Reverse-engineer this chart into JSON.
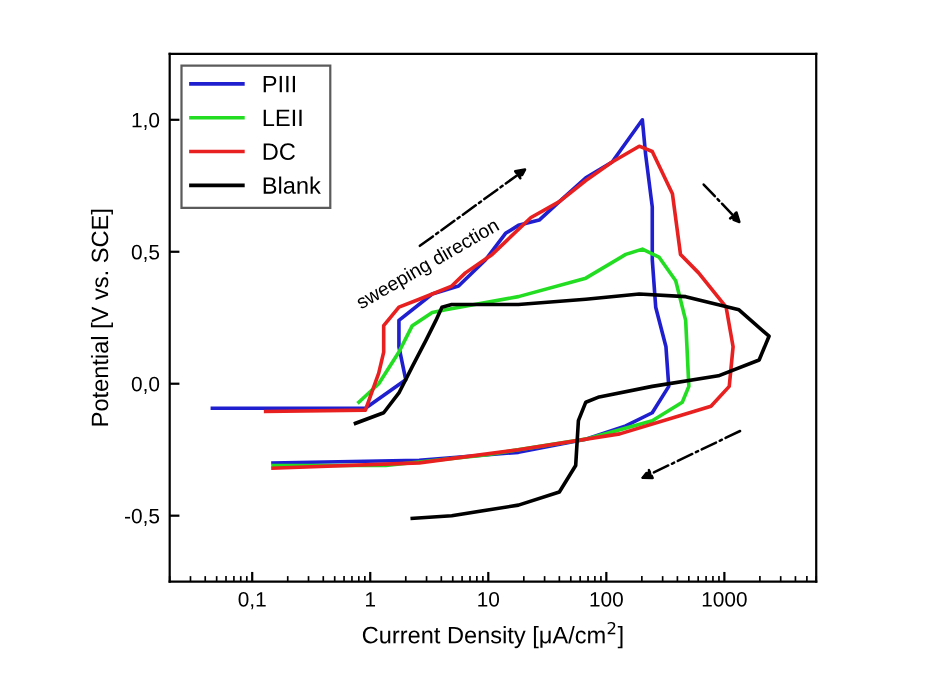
{
  "chart_data": {
    "type": "line",
    "xlabel": "Current Density [μA/cm$^{2}$]",
    "ylabel": "Potential [V vs. SCE]",
    "log": "x",
    "xlim": [
      0.02,
      6000
    ],
    "ylim": [
      -0.75,
      1.25
    ],
    "xticks": [
      {
        "value": 0.1,
        "label": "0,1"
      },
      1,
      10,
      100,
      1000
    ],
    "yticks": [
      {
        "value": -0.5,
        "label": "-0,5"
      },
      {
        "value": 0,
        "label": "0,0"
      },
      {
        "value": 0.5,
        "label": "0,5"
      },
      {
        "value": 1.0,
        "label": "1,0"
      }
    ],
    "grid": false,
    "legend": "top left",
    "annotations": [
      "sweeping direction"
    ],
    "series": [
      {
        "name": "PIII",
        "color": "#1f1fd0",
        "x": [
          0.046,
          0.91,
          2.0,
          1.75,
          1.75,
          3.35,
          5.6,
          9.5,
          14,
          18,
          27,
          40,
          67,
          112,
          202,
          215,
          245,
          245,
          262,
          320,
          338,
          245,
          146,
          67,
          18,
          2.6,
          0.15
        ],
        "values": [
          -0.093,
          -0.093,
          0.015,
          0.14,
          0.24,
          0.34,
          0.37,
          0.47,
          0.57,
          0.6,
          0.62,
          0.69,
          0.78,
          0.84,
          1.0,
          0.87,
          0.67,
          0.47,
          0.29,
          0.14,
          -0.01,
          -0.11,
          -0.16,
          -0.21,
          -0.26,
          -0.29,
          -0.3
        ]
      },
      {
        "name": "LEII",
        "color": "#22dd22",
        "x": [
          0.8,
          1.18,
          1.75,
          2.27,
          3.35,
          4.35,
          18,
          67,
          146,
          202,
          279,
          387,
          470,
          500,
          440,
          245,
          67,
          9.5,
          1.35,
          0.15
        ],
        "values": [
          -0.07,
          0.0,
          0.12,
          0.22,
          0.27,
          0.28,
          0.33,
          0.4,
          0.49,
          0.51,
          0.48,
          0.39,
          0.24,
          -0.01,
          -0.07,
          -0.14,
          -0.21,
          -0.27,
          -0.31,
          -0.31
        ]
      },
      {
        "name": "DC",
        "color": "#e82020",
        "x": [
          0.13,
          0.91,
          1.18,
          1.3,
          1.3,
          1.75,
          2.6,
          4.9,
          6.4,
          10.8,
          23,
          40,
          67,
          112,
          190,
          245,
          363,
          425,
          605,
          1035,
          1185,
          1100,
          770,
          425,
          130,
          18,
          2.6,
          0.15
        ],
        "values": [
          -0.105,
          -0.1,
          0.04,
          0.12,
          0.22,
          0.29,
          0.32,
          0.37,
          0.42,
          0.49,
          0.63,
          0.69,
          0.77,
          0.84,
          0.9,
          0.88,
          0.72,
          0.49,
          0.42,
          0.29,
          0.14,
          -0.01,
          -0.085,
          -0.12,
          -0.19,
          -0.25,
          -0.3,
          -0.32
        ]
      },
      {
        "name": "Blank",
        "color": "#000000",
        "x": [
          0.75,
          1.3,
          1.75,
          2.27,
          2.97,
          3.6,
          4.05,
          4.9,
          18,
          67,
          190,
          470,
          1330,
          2390,
          1970,
          890,
          245,
          87,
          67,
          58,
          55,
          40,
          18,
          4.9,
          2.27
        ],
        "values": [
          -0.15,
          -0.11,
          -0.035,
          0.065,
          0.165,
          0.24,
          0.29,
          0.3,
          0.3,
          0.32,
          0.34,
          0.33,
          0.28,
          0.18,
          0.09,
          0.03,
          -0.01,
          -0.05,
          -0.07,
          -0.14,
          -0.31,
          -0.41,
          -0.46,
          -0.5,
          -0.51
        ]
      }
    ]
  }
}
